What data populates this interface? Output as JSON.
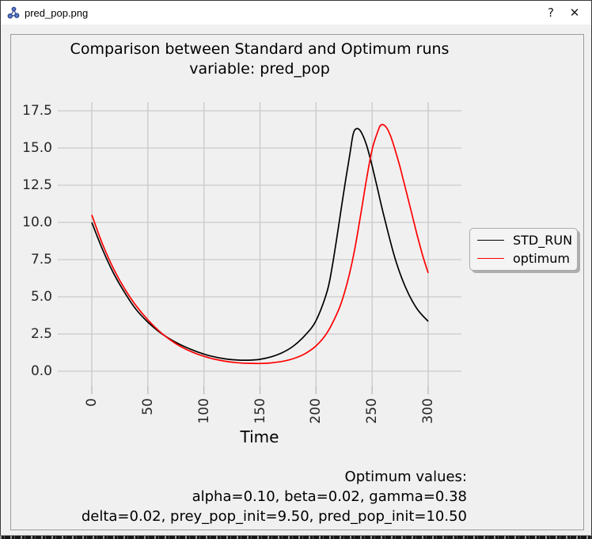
{
  "window": {
    "title": "pred_pop.png",
    "controls": {
      "help": "?",
      "close": "✕"
    }
  },
  "colors": {
    "figure_bg": "#f0f0f0",
    "grid": "#c9c9c9",
    "tick_mark": "#b3b3b3",
    "std_run": "#000000",
    "optimum": "#ff0000"
  },
  "chart_data": {
    "type": "line",
    "title_lines": [
      "Comparison between Standard and Optimum runs",
      "variable: pred_pop"
    ],
    "xlabel": "Time",
    "ylabel": "",
    "xlim": [
      -30,
      330
    ],
    "ylim": [
      -1.0,
      18.1
    ],
    "x_ticks": [
      0,
      50,
      100,
      150,
      200,
      250,
      300
    ],
    "x_tick_labels": [
      "0",
      "50",
      "100",
      "150",
      "200",
      "250",
      "300"
    ],
    "x_tick_rotation": 90,
    "y_ticks": [
      0.0,
      2.5,
      5.0,
      7.5,
      10.0,
      12.5,
      15.0,
      17.5
    ],
    "y_tick_labels": [
      "0.0",
      "2.5",
      "5.0",
      "7.5",
      "10.0",
      "12.5",
      "15.0",
      "17.5"
    ],
    "grid": true,
    "legend": {
      "position": "center-right-outside",
      "entries": [
        "STD_RUN",
        "optimum"
      ]
    },
    "series": [
      {
        "name": "STD_RUN",
        "color": "#000000",
        "points": [
          [
            0,
            10.0
          ],
          [
            10,
            8.1
          ],
          [
            20,
            6.5
          ],
          [
            30,
            5.2
          ],
          [
            40,
            4.1
          ],
          [
            50,
            3.3
          ],
          [
            60,
            2.65
          ],
          [
            70,
            2.15
          ],
          [
            80,
            1.75
          ],
          [
            90,
            1.42
          ],
          [
            100,
            1.15
          ],
          [
            110,
            0.95
          ],
          [
            120,
            0.82
          ],
          [
            130,
            0.75
          ],
          [
            140,
            0.74
          ],
          [
            150,
            0.8
          ],
          [
            160,
            0.97
          ],
          [
            170,
            1.25
          ],
          [
            180,
            1.7
          ],
          [
            190,
            2.4
          ],
          [
            200,
            3.4
          ],
          [
            210,
            5.4
          ],
          [
            215,
            7.3
          ],
          [
            220,
            9.7
          ],
          [
            225,
            12.2
          ],
          [
            230,
            14.5
          ],
          [
            233,
            15.9
          ],
          [
            236,
            16.3
          ],
          [
            240,
            16.1
          ],
          [
            245,
            15.2
          ],
          [
            250,
            13.8
          ],
          [
            255,
            12.2
          ],
          [
            260,
            10.6
          ],
          [
            270,
            7.7
          ],
          [
            280,
            5.6
          ],
          [
            290,
            4.2
          ],
          [
            300,
            3.35
          ]
        ]
      },
      {
        "name": "optimum",
        "color": "#ff0000",
        "points": [
          [
            0,
            10.5
          ],
          [
            10,
            8.45
          ],
          [
            20,
            6.8
          ],
          [
            30,
            5.45
          ],
          [
            40,
            4.35
          ],
          [
            50,
            3.45
          ],
          [
            60,
            2.7
          ],
          [
            70,
            2.1
          ],
          [
            80,
            1.63
          ],
          [
            90,
            1.27
          ],
          [
            100,
            1.0
          ],
          [
            110,
            0.8
          ],
          [
            120,
            0.66
          ],
          [
            130,
            0.57
          ],
          [
            140,
            0.53
          ],
          [
            150,
            0.52
          ],
          [
            160,
            0.56
          ],
          [
            170,
            0.66
          ],
          [
            180,
            0.85
          ],
          [
            190,
            1.17
          ],
          [
            200,
            1.7
          ],
          [
            210,
            2.6
          ],
          [
            220,
            4.1
          ],
          [
            225,
            5.2
          ],
          [
            230,
            6.6
          ],
          [
            235,
            8.4
          ],
          [
            240,
            10.6
          ],
          [
            245,
            12.9
          ],
          [
            250,
            14.9
          ],
          [
            255,
            16.1
          ],
          [
            258,
            16.55
          ],
          [
            262,
            16.45
          ],
          [
            266,
            15.9
          ],
          [
            270,
            15.0
          ],
          [
            275,
            13.7
          ],
          [
            280,
            12.2
          ],
          [
            285,
            10.7
          ],
          [
            290,
            9.2
          ],
          [
            295,
            7.8
          ],
          [
            300,
            6.6
          ]
        ]
      }
    ],
    "annotation": {
      "align": "right",
      "lines": [
        "Optimum values:",
        "alpha=0.10, beta=0.02, gamma=0.38",
        "delta=0.02, prey_pop_init=9.50, pred_pop_init=10.50"
      ]
    }
  }
}
